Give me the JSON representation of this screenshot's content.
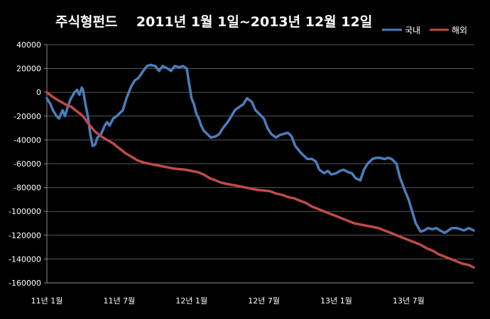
{
  "chart_data": {
    "type": "line",
    "title": "주식형펀드    2011년 1월 1일~2013년 12월 12일",
    "xlabel": "",
    "ylabel": "",
    "ylim": [
      -160000,
      40000
    ],
    "y_ticks": [
      40000,
      20000,
      0,
      -20000,
      -40000,
      -60000,
      -80000,
      -100000,
      -120000,
      -140000,
      -160000
    ],
    "y_tick_labels": [
      "40000",
      "20000",
      "0",
      "-20000",
      "-40000",
      "-60000",
      "-80000",
      "-100000",
      "-120000",
      "-140000",
      "-160000"
    ],
    "x_tick_labels": [
      "11년 1월",
      "11년 7월",
      "12년 1월",
      "12년 7월",
      "13년 1월",
      "13년 7월"
    ],
    "x_tick_positions": [
      0,
      6,
      12,
      18,
      24,
      30
    ],
    "x_range": [
      0,
      35.4
    ],
    "grid": "horizontal",
    "legend_position": "top-right",
    "series": [
      {
        "name": "국내",
        "color": "#4a7ebb",
        "x": [
          0,
          0.3,
          0.5,
          0.8,
          1.0,
          1.3,
          1.5,
          1.8,
          2.0,
          2.3,
          2.5,
          2.7,
          2.9,
          3.0,
          3.2,
          3.4,
          3.6,
          3.8,
          4.0,
          4.2,
          4.5,
          4.8,
          5.0,
          5.2,
          5.5,
          5.8,
          6.0,
          6.3,
          6.6,
          7.0,
          7.3,
          7.6,
          8.0,
          8.3,
          8.6,
          9.0,
          9.3,
          9.6,
          10.0,
          10.3,
          10.6,
          11.0,
          11.3,
          11.6,
          12.0,
          12.2,
          12.4,
          12.6,
          12.8,
          13.0,
          13.3,
          13.6,
          14.0,
          14.3,
          14.6,
          15.0,
          15.3,
          15.6,
          16.0,
          16.3,
          16.6,
          17.0,
          17.3,
          17.6,
          18.0,
          18.3,
          18.6,
          19.0,
          19.3,
          19.6,
          20.0,
          20.3,
          20.6,
          21.0,
          21.3,
          21.6,
          22.0,
          22.3,
          22.6,
          23.0,
          23.3,
          23.6,
          24.0,
          24.3,
          24.6,
          25.0,
          25.3,
          25.6,
          26.0,
          26.3,
          26.6,
          27.0,
          27.3,
          27.6,
          28.0,
          28.3,
          28.6,
          29.0,
          29.3,
          29.6,
          30.0,
          30.3,
          30.6,
          31.0,
          31.3,
          31.6,
          32.0,
          32.3,
          32.6,
          33.0,
          33.3,
          33.6,
          34.0,
          34.3,
          34.6,
          35.0,
          35.2,
          35.4
        ],
        "values": [
          -5000,
          -10000,
          -15000,
          -20000,
          -22000,
          -15000,
          -20000,
          -10000,
          -5000,
          0,
          2000,
          -2000,
          4000,
          2000,
          -10000,
          -20000,
          -35000,
          -45000,
          -44000,
          -38000,
          -35000,
          -28000,
          -25000,
          -28000,
          -22000,
          -20000,
          -18000,
          -15000,
          -5000,
          5000,
          10000,
          12000,
          18000,
          22000,
          23000,
          22000,
          18000,
          22000,
          20000,
          18000,
          22000,
          21000,
          22000,
          20000,
          -5000,
          -10000,
          -18000,
          -22000,
          -28000,
          -32000,
          -35000,
          -38000,
          -37000,
          -35000,
          -30000,
          -25000,
          -20000,
          -15000,
          -12000,
          -10000,
          -5000,
          -8000,
          -15000,
          -18000,
          -22000,
          -30000,
          -35000,
          -38000,
          -36000,
          -35000,
          -34000,
          -37000,
          -45000,
          -50000,
          -53000,
          -56000,
          -56000,
          -58000,
          -65000,
          -68000,
          -66000,
          -69000,
          -68000,
          -66000,
          -65000,
          -67000,
          -68000,
          -72000,
          -74000,
          -65000,
          -60000,
          -56000,
          -55000,
          -55000,
          -56000,
          -55000,
          -56000,
          -60000,
          -72000,
          -80000,
          -90000,
          -100000,
          -110000,
          -117000,
          -116000,
          -114000,
          -115000,
          -114000,
          -116000,
          -118000,
          -116000,
          -114000,
          -114000,
          -115000,
          -116000,
          -114000,
          -115000,
          -116000
        ]
      },
      {
        "name": "해외",
        "color": "#be4b48",
        "x": [
          0,
          0.5,
          1.0,
          1.5,
          2.0,
          2.5,
          3.0,
          3.5,
          4.0,
          4.5,
          5.0,
          5.5,
          6.0,
          6.5,
          7.0,
          7.5,
          8.0,
          8.5,
          9.0,
          9.5,
          10.0,
          10.5,
          11.0,
          11.5,
          12.0,
          12.5,
          13.0,
          13.5,
          14.0,
          14.5,
          15.0,
          15.5,
          16.0,
          16.5,
          17.0,
          17.5,
          18.0,
          18.5,
          19.0,
          19.5,
          20.0,
          20.5,
          21.0,
          21.5,
          22.0,
          22.5,
          23.0,
          23.5,
          24.0,
          24.5,
          25.0,
          25.5,
          26.0,
          26.5,
          27.0,
          27.5,
          28.0,
          28.5,
          29.0,
          29.5,
          30.0,
          30.5,
          31.0,
          31.5,
          32.0,
          32.5,
          33.0,
          33.5,
          34.0,
          34.5,
          35.0,
          35.4
        ],
        "values": [
          0,
          -4000,
          -7000,
          -10000,
          -12000,
          -16000,
          -20000,
          -27000,
          -33000,
          -37000,
          -40000,
          -43000,
          -47000,
          -51000,
          -54000,
          -57000,
          -59000,
          -60000,
          -61000,
          -62000,
          -63000,
          -64000,
          -64500,
          -65000,
          -66000,
          -67000,
          -69000,
          -72000,
          -74000,
          -76000,
          -77000,
          -78000,
          -79000,
          -80000,
          -81000,
          -82000,
          -82500,
          -83000,
          -85000,
          -86000,
          -88000,
          -89000,
          -91000,
          -93000,
          -96000,
          -98000,
          -100000,
          -102000,
          -104000,
          -106000,
          -108000,
          -110000,
          -111000,
          -112000,
          -113000,
          -114000,
          -116000,
          -118000,
          -120000,
          -122000,
          -124000,
          -126000,
          -128000,
          -131000,
          -133000,
          -136000,
          -138000,
          -140000,
          -142000,
          -144000,
          -145000,
          -147000
        ]
      }
    ]
  }
}
